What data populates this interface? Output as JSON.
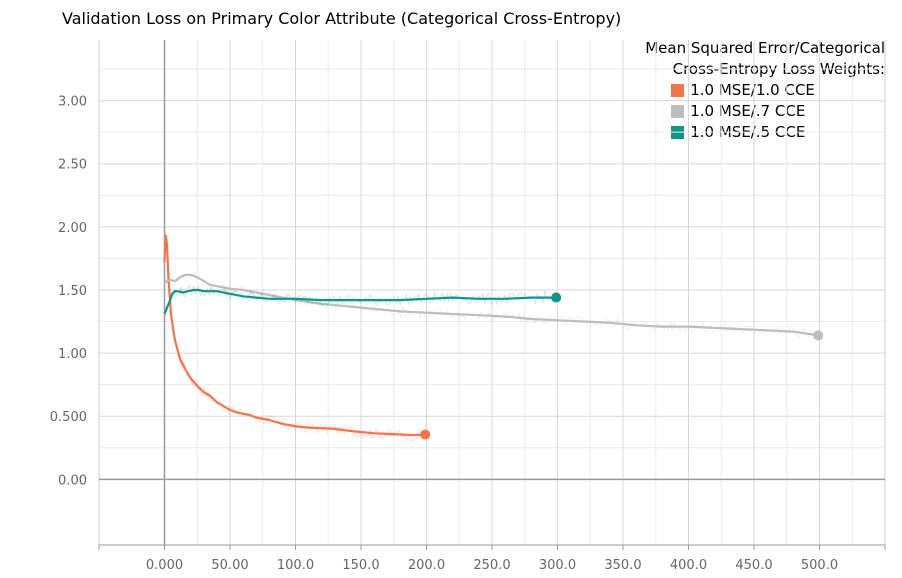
{
  "chart_data": {
    "type": "line",
    "title": "Validation Loss on Primary Color Attribute (Categorical Cross-Entropy)",
    "xlabel": "",
    "ylabel": "",
    "xlim": [
      -50,
      550
    ],
    "ylim": [
      -0.52,
      3.48
    ],
    "grid": true,
    "x_ticks": [
      0,
      50,
      100,
      150,
      200,
      250,
      300,
      350,
      400,
      450,
      500
    ],
    "x_tick_labels": [
      "0.000",
      "50.00",
      "100.0",
      "150.0",
      "200.0",
      "250.0",
      "300.0",
      "350.0",
      "400.0",
      "450.0",
      "500.0"
    ],
    "y_ticks": [
      0,
      0.5,
      1,
      1.5,
      2,
      2.5,
      3
    ],
    "y_tick_labels": [
      "0.00",
      "0.500",
      "1.00",
      "1.50",
      "2.00",
      "2.50",
      "3.00"
    ],
    "legend": {
      "title_line1": "Mean Squared Error/Categorical",
      "title_line2": "Cross-Entropy Loss Weights:",
      "placement": "top-right"
    },
    "series": [
      {
        "name": "1.0 MSE/1.0 CCE",
        "color": "#f4744a",
        "x": [
          0,
          1,
          2,
          3,
          5,
          8,
          12,
          16,
          20,
          25,
          30,
          35,
          40,
          45,
          50,
          55,
          60,
          65,
          70,
          80,
          90,
          100,
          110,
          120,
          130,
          140,
          150,
          160,
          170,
          180,
          190,
          199
        ],
        "y": [
          1.72,
          1.93,
          1.85,
          1.6,
          1.3,
          1.1,
          0.95,
          0.87,
          0.8,
          0.74,
          0.69,
          0.66,
          0.61,
          0.58,
          0.55,
          0.53,
          0.52,
          0.51,
          0.49,
          0.47,
          0.44,
          0.42,
          0.41,
          0.405,
          0.4,
          0.385,
          0.375,
          0.365,
          0.36,
          0.355,
          0.35,
          0.355
        ]
      },
      {
        "name": "1.0 MSE/.7 CCE",
        "color": "#bdbdbd",
        "x": [
          0,
          2,
          4,
          8,
          12,
          16,
          20,
          25,
          30,
          35,
          40,
          50,
          60,
          70,
          80,
          90,
          100,
          120,
          140,
          160,
          180,
          200,
          220,
          240,
          260,
          280,
          300,
          320,
          340,
          360,
          380,
          400,
          420,
          440,
          460,
          480,
          499
        ],
        "y": [
          1.55,
          1.57,
          1.58,
          1.57,
          1.6,
          1.62,
          1.62,
          1.6,
          1.57,
          1.54,
          1.53,
          1.51,
          1.5,
          1.48,
          1.46,
          1.44,
          1.42,
          1.39,
          1.37,
          1.35,
          1.33,
          1.32,
          1.31,
          1.3,
          1.29,
          1.27,
          1.26,
          1.25,
          1.24,
          1.22,
          1.21,
          1.21,
          1.2,
          1.19,
          1.18,
          1.17,
          1.14
        ]
      },
      {
        "name": "1.0 MSE/.5 CCE",
        "color": "#0f9688",
        "x": [
          0,
          2,
          4,
          6,
          8,
          10,
          14,
          18,
          22,
          26,
          30,
          40,
          50,
          60,
          70,
          80,
          90,
          100,
          120,
          140,
          160,
          180,
          200,
          220,
          240,
          260,
          280,
          299
        ],
        "y": [
          1.31,
          1.36,
          1.41,
          1.47,
          1.49,
          1.49,
          1.48,
          1.49,
          1.5,
          1.5,
          1.49,
          1.49,
          1.47,
          1.45,
          1.44,
          1.43,
          1.43,
          1.43,
          1.42,
          1.42,
          1.42,
          1.42,
          1.43,
          1.44,
          1.43,
          1.43,
          1.44,
          1.44
        ]
      }
    ]
  }
}
